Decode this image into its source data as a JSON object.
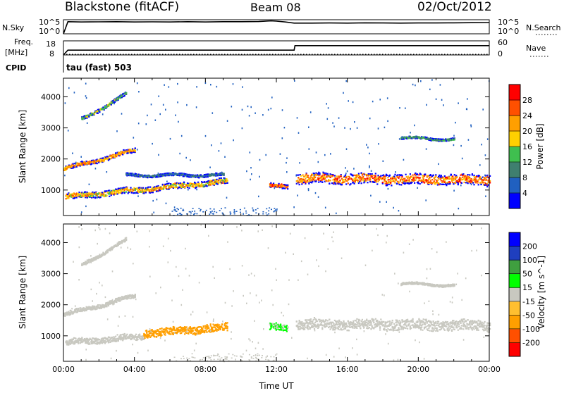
{
  "header": {
    "station": "Blackstone (fitACF)",
    "beam": "Beam 08",
    "date": "02/Oct/2012"
  },
  "top_labels": {
    "nsky": "N.Sky",
    "freq_line1": "Freq.",
    "freq_line2": "[MHz]",
    "cpid": "CPID",
    "nsearch": "N.Search",
    "nave": "Nave",
    "cpid_text": "tau (fast) 503"
  },
  "colors": {
    "power": [
      "#0000ff",
      "#2060c0",
      "#3f7f6f",
      "#3fbf4f",
      "#ffd000",
      "#ff9f00",
      "#ff5000",
      "#ff0000"
    ],
    "velocity": [
      "#ff0000",
      "#ff5000",
      "#ff9f00",
      "#ffbf30",
      "#c8c8c0",
      "#00ff00",
      "#3f9f3f",
      "#1f3fbf",
      "#0000ff"
    ]
  },
  "chart_data": [
    {
      "type": "line",
      "title": "N.Sky / N.Search",
      "ylabel_left": "N.Sky",
      "ylabel_right": "N.Search",
      "left_ticks": [
        "10^5",
        "10^0"
      ],
      "right_ticks": [
        "10^5",
        "10^0"
      ],
      "x": [
        0,
        0.25,
        1,
        2,
        3,
        4,
        5,
        6,
        7,
        8,
        9,
        10,
        11,
        11.7,
        12,
        12.5,
        13,
        14,
        15,
        16,
        17,
        18,
        19,
        20,
        21,
        22,
        23,
        24
      ],
      "series": [
        {
          "name": "N.Sky",
          "values": [
            0,
            4.3,
            4.2,
            4.25,
            4.3,
            4.2,
            4.25,
            4.2,
            4.3,
            4.2,
            4.3,
            4.3,
            4.35,
            4.6,
            4.5,
            4.2,
            3.8,
            3.8,
            3.85,
            3.8,
            3.9,
            3.85,
            3.8,
            3.85,
            3.85,
            3.9,
            3.95,
            4.0
          ]
        }
      ]
    },
    {
      "type": "line",
      "title": "Freq. / Nave",
      "ylabel_left": "Freq. [MHz]",
      "ylabel_right": "Nave",
      "left_ticks": [
        "18",
        "8"
      ],
      "right_ticks": [
        "60",
        "0"
      ],
      "x": [
        0,
        0.25,
        13,
        13.05,
        24
      ],
      "series": [
        {
          "name": "Freq.",
          "values": [
            8,
            11.4,
            11.4,
            14.6,
            14.6
          ]
        },
        {
          "name": "Nave",
          "values": [
            0,
            0,
            0,
            0,
            0
          ]
        }
      ]
    },
    {
      "type": "heatmap",
      "title": "Power",
      "xlabel": "",
      "ylabel": "Slant Range [km]",
      "xlim": [
        0,
        24
      ],
      "ylim": [
        180,
        4600
      ],
      "y_ticks": [
        "1000",
        "2000",
        "3000",
        "4000"
      ],
      "colorbar_label": "Power [dB]",
      "colorbar_ticks": [
        "4",
        "8",
        "12",
        "16",
        "20",
        "24",
        "28"
      ],
      "bands": [
        {
          "x": [
            0.1,
            9.2
          ],
          "center": [
            800,
            1300
          ],
          "width": 180,
          "level": [
            3,
            6
          ],
          "edge": "blue"
        },
        {
          "x": [
            3.5,
            9.0
          ],
          "center": [
            1500,
            1500
          ],
          "width": 80,
          "level": [
            1,
            2
          ],
          "edge": "blue"
        },
        {
          "x": [
            0,
            4.0
          ],
          "center": [
            1700,
            2300
          ],
          "width": 130,
          "level": [
            4,
            6
          ],
          "edge": "blue"
        },
        {
          "x": [
            1.0,
            3.5
          ],
          "center": [
            3300,
            4100
          ],
          "width": 100,
          "level": [
            2,
            4
          ],
          "edge": "blue"
        },
        {
          "x": [
            13.1,
            24
          ],
          "center": [
            1400,
            1350
          ],
          "width": 320,
          "level": [
            4,
            7
          ],
          "edge": "blue"
        },
        {
          "x": [
            11.6,
            12.6
          ],
          "center": [
            1150,
            1150
          ],
          "width": 140,
          "level": [
            5,
            7
          ],
          "edge": "blue"
        },
        {
          "x": [
            19.0,
            22.0
          ],
          "center": [
            2700,
            2650
          ],
          "width": 70,
          "level": [
            2,
            3
          ],
          "edge": "blue"
        }
      ]
    },
    {
      "type": "heatmap",
      "title": "Velocity",
      "xlabel": "Time UT",
      "ylabel": "Slant Range [km]",
      "xlim": [
        0,
        24
      ],
      "ylim": [
        180,
        4600
      ],
      "x_ticks": [
        "00:00",
        "04:00",
        "08:00",
        "12:00",
        "16:00",
        "20:00",
        "00:00"
      ],
      "y_ticks": [
        "1000",
        "2000",
        "3000",
        "4000"
      ],
      "colorbar_label": "Velocity [m s^-1]",
      "colorbar_ticks": [
        "-200",
        "-100",
        "-50",
        "-15",
        "15",
        "50",
        "100",
        "200"
      ],
      "bands": [
        {
          "x": [
            0.1,
            4.5
          ],
          "center": [
            800,
            1000
          ],
          "width": 180,
          "level": [
            4,
            4
          ],
          "edge": "gray"
        },
        {
          "x": [
            4.5,
            9.2
          ],
          "center": [
            1100,
            1300
          ],
          "width": 240,
          "level": [
            2,
            2
          ],
          "edge": "orange"
        },
        {
          "x": [
            0,
            4.0
          ],
          "center": [
            1700,
            2300
          ],
          "width": 130,
          "level": [
            4,
            4
          ],
          "edge": "gray"
        },
        {
          "x": [
            1.0,
            3.5
          ],
          "center": [
            3300,
            4100
          ],
          "width": 100,
          "level": [
            4,
            4
          ],
          "edge": "gray"
        },
        {
          "x": [
            13.1,
            24
          ],
          "center": [
            1400,
            1350
          ],
          "width": 320,
          "level": [
            4,
            4
          ],
          "edge": "gray"
        },
        {
          "x": [
            11.6,
            12.6
          ],
          "center": [
            1300,
            1300
          ],
          "width": 200,
          "level": [
            4,
            5
          ],
          "edge": "green"
        },
        {
          "x": [
            19.0,
            22.0
          ],
          "center": [
            2700,
            2650
          ],
          "width": 70,
          "level": [
            4,
            4
          ],
          "edge": "gray"
        }
      ]
    }
  ]
}
